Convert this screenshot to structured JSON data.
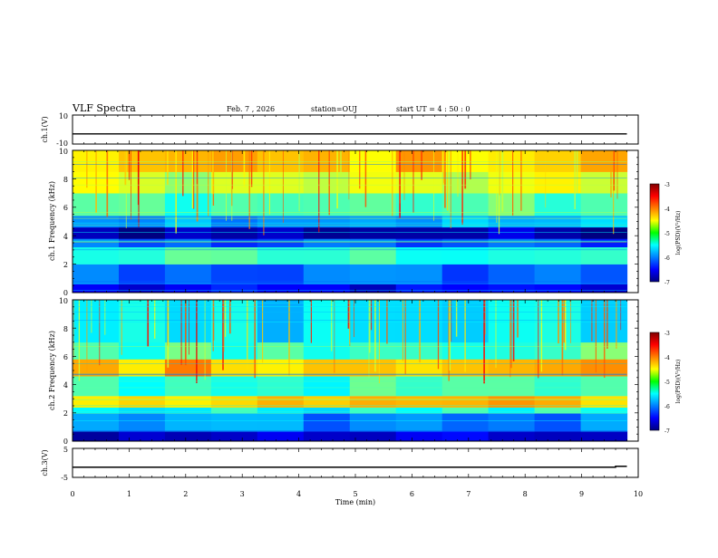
{
  "header": {
    "title": "VLF Spectra",
    "date": "Feb. 7 , 2026",
    "station": "station=OUJ",
    "start": "start UT = 4 : 50 : 0"
  },
  "chart_data": [
    {
      "type": "line",
      "panel": "ch1-waveform",
      "ylabel": "ch.1(V)",
      "ylim": [
        -10,
        10
      ],
      "yticks": [
        10,
        -10
      ],
      "x": [
        0,
        0.5,
        1,
        1.5,
        2,
        2.5,
        3,
        3.5,
        4,
        4.5,
        5,
        5.5,
        6,
        6.5,
        7,
        7.5,
        8,
        8.5,
        9,
        9.5,
        9.8
      ],
      "values": [
        -3,
        -3,
        -3,
        -3,
        -3,
        -3,
        -3,
        -3,
        -3,
        -3,
        -3,
        -3,
        -3,
        -3,
        -3,
        -3,
        -3,
        -3,
        -3,
        -3,
        -3
      ],
      "color": "#000000"
    },
    {
      "type": "heatmap",
      "panel": "ch1-spectrogram",
      "ylabel": "ch.1 Frequency (kHz)",
      "ylim": [
        0,
        10
      ],
      "yticks": [
        0,
        2,
        4,
        6,
        8,
        10
      ],
      "xlim": [
        0,
        10
      ],
      "data_end_min": 9.8,
      "colorbar": {
        "label": "log(PSD)(V²/Hz)",
        "range": [
          -7,
          -3
        ],
        "ticks": [
          "-3",
          "-4",
          "-5",
          "-6",
          "-7"
        ]
      },
      "bands": [
        {
          "f": [
            0,
            0.6
          ],
          "level": -6.6
        },
        {
          "f": [
            0.6,
            2.0
          ],
          "level": -6.1
        },
        {
          "f": [
            2.0,
            3.2
          ],
          "level": -5.3
        },
        {
          "f": [
            3.2,
            3.8
          ],
          "level": -6.2
        },
        {
          "f": [
            3.8,
            4.6
          ],
          "level": -6.8
        },
        {
          "f": [
            4.6,
            5.4
          ],
          "level": -5.8
        },
        {
          "f": [
            5.4,
            7.0
          ],
          "level": -5.2
        },
        {
          "f": [
            7.0,
            8.5
          ],
          "level": -4.7
        },
        {
          "f": [
            8.5,
            10.0
          ],
          "level": -4.3
        }
      ]
    },
    {
      "type": "heatmap",
      "panel": "ch2-spectrogram",
      "ylabel": "ch.2 Frequency (kHz)",
      "ylim": [
        0,
        10
      ],
      "yticks": [
        0,
        2,
        4,
        6,
        8,
        10
      ],
      "xlim": [
        0,
        10
      ],
      "data_end_min": 9.8,
      "colorbar": {
        "label": "log(PSD)(V²/Hz)",
        "range": [
          -7,
          -3
        ],
        "ticks": [
          "-3",
          "-4",
          "-5",
          "-6",
          "-7"
        ]
      },
      "bands": [
        {
          "f": [
            0,
            0.7
          ],
          "level": -6.7
        },
        {
          "f": [
            0.7,
            2.0
          ],
          "level": -6.0
        },
        {
          "f": [
            2.0,
            2.4
          ],
          "level": -5.4
        },
        {
          "f": [
            2.4,
            3.2
          ],
          "level": -4.3
        },
        {
          "f": [
            3.2,
            4.6
          ],
          "level": -5.3
        },
        {
          "f": [
            4.6,
            5.8
          ],
          "level": -4.2
        },
        {
          "f": [
            5.8,
            7.0
          ],
          "level": -5.2
        },
        {
          "f": [
            7.0,
            10.0
          ],
          "level": -5.6
        }
      ]
    },
    {
      "type": "line",
      "panel": "ch3-waveform",
      "ylabel": "ch.3(V)",
      "ylim": [
        -5,
        5
      ],
      "yticks": [
        5,
        -5
      ],
      "xlabel": "Time (min)",
      "xlim": [
        0,
        10
      ],
      "xticks": [
        0,
        1,
        2,
        3,
        4,
        5,
        6,
        7,
        8,
        9,
        10
      ],
      "x": [
        0,
        9.6,
        9.6,
        9.8
      ],
      "values": [
        -1.5,
        -1.5,
        -1.2,
        -1.2
      ],
      "color": "#000000"
    }
  ]
}
